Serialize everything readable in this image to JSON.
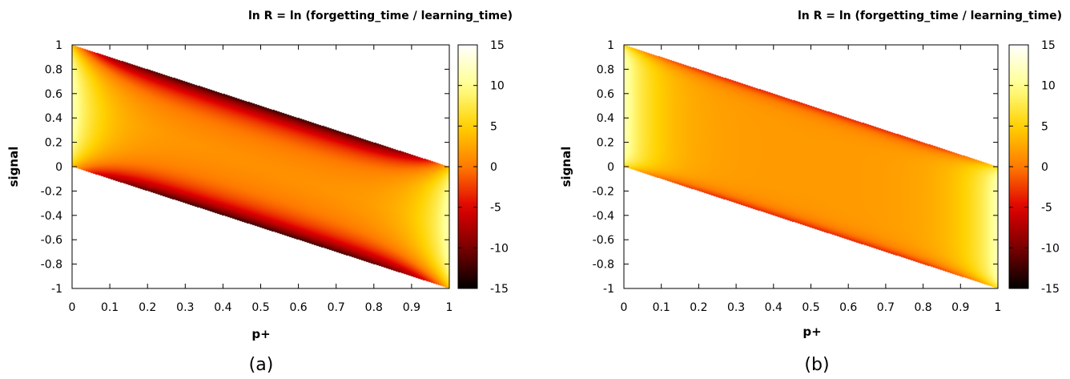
{
  "chart_data": [
    {
      "panel_label": "(a)",
      "type": "heatmap",
      "title": "ln R =  ln (forgetting_time / learning_time)",
      "xlabel": "p+",
      "ylabel": "signal",
      "xlim": [
        0,
        1
      ],
      "ylim": [
        -1,
        1
      ],
      "x_ticks": [
        "0",
        "0.1",
        "0.2",
        "0.3",
        "0.4",
        "0.5",
        "0.6",
        "0.7",
        "0.8",
        "0.9",
        "1"
      ],
      "y_ticks": [
        "1",
        "0.8",
        "0.6",
        "0.4",
        "0.2",
        "0",
        "-0.2",
        "-0.4",
        "-0.6",
        "-0.8",
        "-1"
      ],
      "colorbar_range": [
        -15,
        15
      ],
      "colorbar_ticks": [
        "15",
        "10",
        "5",
        "0",
        "-5",
        "-10",
        "-15"
      ],
      "colormap": [
        "#000000",
        "#7a0000",
        "#e00000",
        "#ff7a00",
        "#ffd200",
        "#ffff90",
        "#ffffff"
      ],
      "region": {
        "x": [
          0,
          1
        ],
        "upper_edge": [
          [
            0,
            1
          ],
          [
            1,
            0
          ]
        ],
        "lower_edge": [
          [
            0,
            0
          ],
          [
            1,
            -1
          ]
        ]
      },
      "field": {
        "interior_value": 1.5,
        "left_right_edge_value": 12,
        "top_bottom_edge_value": -13,
        "edge_sharpness": 0.12
      }
    },
    {
      "panel_label": "(b)",
      "type": "heatmap",
      "title": "ln R =  ln (forgetting_time / learning_time)",
      "xlabel": "p+",
      "ylabel": "signal",
      "xlim": [
        0,
        1
      ],
      "ylim": [
        -1,
        1
      ],
      "x_ticks": [
        "0",
        "0.1",
        "0.2",
        "0.3",
        "0.4",
        "0.5",
        "0.6",
        "0.7",
        "0.8",
        "0.9",
        "1"
      ],
      "y_ticks": [
        "1",
        "0.8",
        "0.6",
        "0.4",
        "0.2",
        "0",
        "-0.2",
        "-0.4",
        "-0.6",
        "-0.8",
        "-1"
      ],
      "colorbar_range": [
        -15,
        15
      ],
      "colorbar_ticks": [
        "15",
        "10",
        "5",
        "0",
        "-5",
        "-10",
        "-15"
      ],
      "colormap": [
        "#000000",
        "#7a0000",
        "#e00000",
        "#ff7a00",
        "#ffd200",
        "#ffff90",
        "#ffffff"
      ],
      "region": {
        "x": [
          0,
          1
        ],
        "upper_edge": [
          [
            0,
            1
          ],
          [
            1,
            0
          ]
        ],
        "lower_edge": [
          [
            0,
            0
          ],
          [
            1,
            -1
          ]
        ]
      },
      "field": {
        "interior_value": 1.8,
        "left_right_edge_value": 12,
        "top_bottom_edge_value": -4,
        "edge_sharpness": 0.05
      }
    }
  ]
}
